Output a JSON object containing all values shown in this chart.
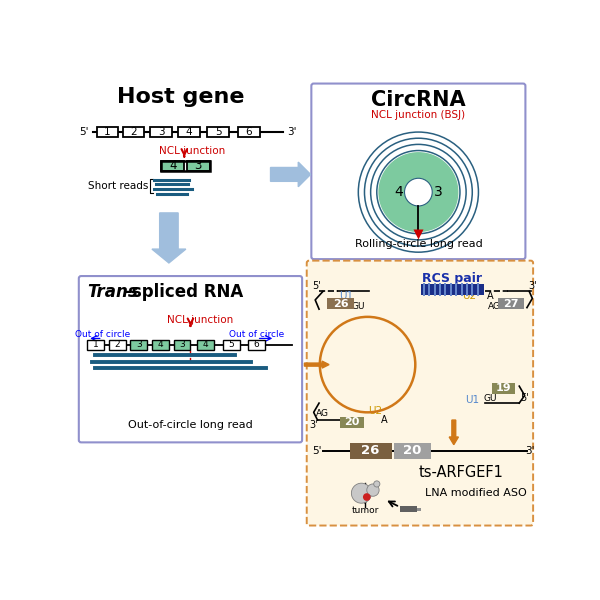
{
  "bg_color": "#ffffff",
  "exon_color": "#ffffff",
  "exon_border": "#000000",
  "green_exon_color": "#7dca9f",
  "circ_bg": "#7dca9f",
  "circ_line_color": "#2a6080",
  "arrow_color": "#a0bedd",
  "blue_box_border": "#9090cc",
  "orange_box_border": "#d89040",
  "ncl_color": "#cc0000",
  "short_reads_color": "#1a5c80",
  "rcs_color": "#1a30aa",
  "title": "Host gene",
  "circRNA_title": "CircRNA",
  "circRNA_subtitle": "NCL junction (BSJ)",
  "circRNA_caption": "Rolling-circle long read",
  "trans_title_italic": "Trans",
  "trans_title_rest": "-spliced RNA",
  "trans_ncl": "NCL junction",
  "out_of_circle": "Out of circle",
  "out_caption": "Out-of-circle long read",
  "rcs_label": "RCS pair",
  "ts_label": "ts-ARFGEF1",
  "lna_label": "LNA modified ASO",
  "tumor_label": "tumor",
  "exon_labels": [
    "1",
    "2",
    "3",
    "4",
    "5",
    "6"
  ],
  "ts_exon_labels": [
    "1",
    "2",
    "3",
    "4",
    "3",
    "4",
    "5",
    "6"
  ]
}
